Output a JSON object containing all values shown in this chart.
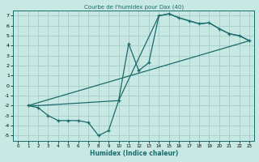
{
  "title": "Courbe de l'humidex pour Dax (40)",
  "xlabel": "Humidex (Indice chaleur)",
  "bg_color": "#c8e8e4",
  "line_color": "#1a6b6b",
  "grid_color": "#a8d0cc",
  "xlim": [
    -0.5,
    23.5
  ],
  "ylim": [
    -5.5,
    7.5
  ],
  "xticks": [
    0,
    1,
    2,
    3,
    4,
    5,
    6,
    7,
    8,
    9,
    10,
    11,
    12,
    13,
    14,
    15,
    16,
    17,
    18,
    19,
    20,
    21,
    22,
    23
  ],
  "yticks": [
    -5,
    -4,
    -3,
    -2,
    -1,
    0,
    1,
    2,
    3,
    4,
    5,
    6,
    7
  ],
  "line1_x": [
    1,
    2,
    3,
    4,
    5,
    6,
    7,
    8,
    9,
    10,
    11,
    12,
    13,
    14,
    15,
    16,
    17,
    18,
    19,
    20,
    21,
    22,
    23
  ],
  "line1_y": [
    -2.0,
    -2.2,
    -3.0,
    -3.5,
    -3.5,
    -3.5,
    -3.7,
    -5.0,
    -4.5,
    -1.5,
    4.2,
    1.5,
    2.3,
    7.0,
    7.2,
    6.8,
    6.5,
    6.2,
    6.3,
    5.7,
    5.2,
    5.0,
    4.5
  ],
  "line2_x": [
    1,
    2,
    10,
    14,
    15,
    16,
    17,
    18,
    19,
    20,
    21,
    22,
    23
  ],
  "line2_y": [
    -2.0,
    -2.0,
    -1.5,
    7.0,
    7.2,
    6.8,
    6.5,
    6.2,
    6.3,
    5.7,
    5.2,
    5.0,
    4.5
  ],
  "line3_x": [
    1,
    23
  ],
  "line3_y": [
    -2.0,
    4.5
  ]
}
